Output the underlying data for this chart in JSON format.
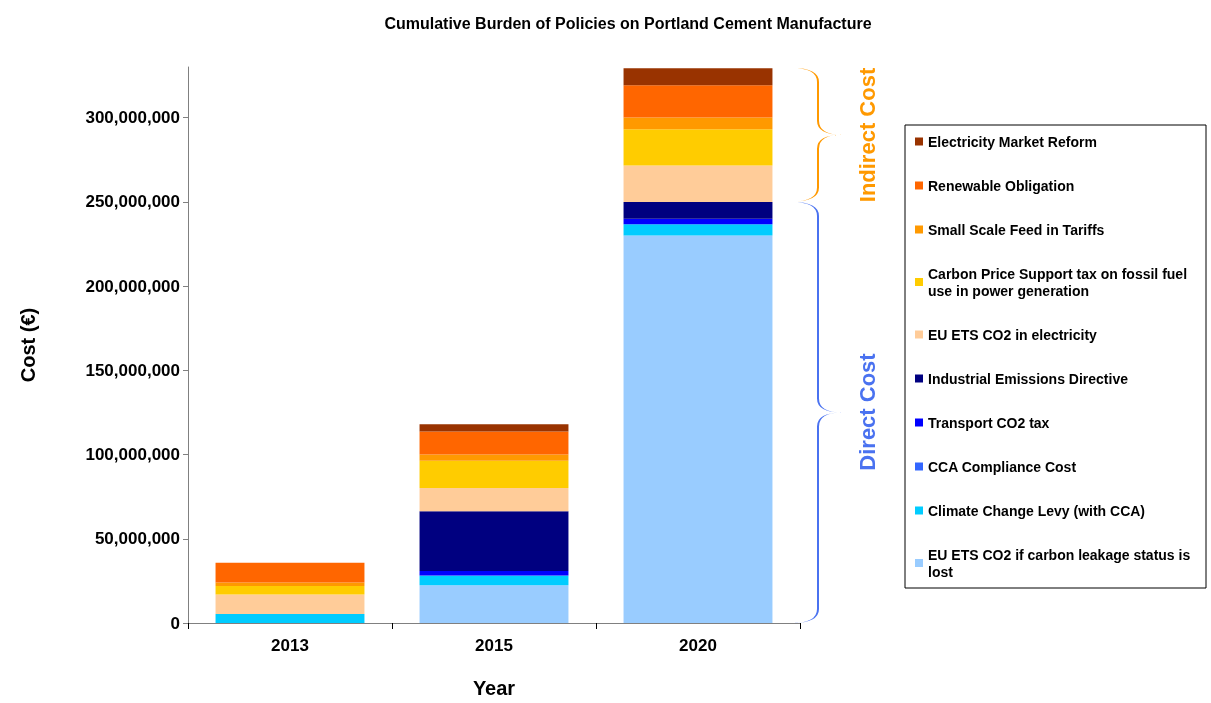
{
  "chart_data": {
    "type": "bar",
    "title": "Cumulative Burden of Policies on Portland Cement Manufacture",
    "xlabel": "Year",
    "ylabel": "Cost (€)",
    "categories": [
      "2013",
      "2015",
      "2020"
    ],
    "stacked": true,
    "ylim": [
      0,
      330000000
    ],
    "yticks": [
      0,
      {
        "value": 50000000,
        "label": "50,000,000"
      },
      {
        "value": 100000000,
        "label": "100,000,000"
      },
      {
        "value": 150000000,
        "label": "150,000,000"
      },
      {
        "value": 200000000,
        "label": "200,000,000"
      },
      {
        "value": 250000000,
        "label": "250,000,000"
      },
      {
        "value": 300000000,
        "label": "300,000,000"
      }
    ],
    "grid": false,
    "legend": "right",
    "annotations": [
      "Indirect Cost",
      "Direct Cost"
    ],
    "series": [
      {
        "name": "EU ETS CO2 if carbon leakage status is lost",
        "color": "#99ccff",
        "values": [
          0,
          22400000,
          230000000
        ]
      },
      {
        "name": "Climate Change Levy (with CCA)",
        "color": "#00ccff",
        "values": [
          5400000,
          5500000,
          6600000
        ]
      },
      {
        "name": "CCA Compliance Cost",
        "color": "#3366ff",
        "values": [
          null,
          500000,
          null
        ]
      },
      {
        "name": "Transport CO2 tax",
        "color": "#0000ff",
        "values": [
          0,
          2500000,
          3400000
        ]
      },
      {
        "name": "Industrial Emissions Directive",
        "color": "#000080",
        "values": [
          0,
          35400000,
          9900000
        ]
      },
      {
        "name": "EU ETS CO2 in electricity",
        "color": "#ffcc99",
        "values": [
          11500000,
          13800000,
          21600000
        ]
      },
      {
        "name": "Carbon Price Support tax on fossil fuel use in power generation",
        "color": "#ffcc00",
        "values": [
          5100000,
          16200000,
          21600000
        ]
      },
      {
        "name": "Small Scale Feed in Tariffs",
        "color": "#ff9900",
        "values": [
          2100000,
          3700000,
          7000000
        ]
      },
      {
        "name": "Renewable Obligation",
        "color": "#ff6600",
        "values": [
          11700000,
          13700000,
          19100000
        ]
      },
      {
        "name": "Electricity Market Reform",
        "color": "#993300",
        "values": [
          0,
          4300000,
          10000000
        ]
      }
    ]
  }
}
